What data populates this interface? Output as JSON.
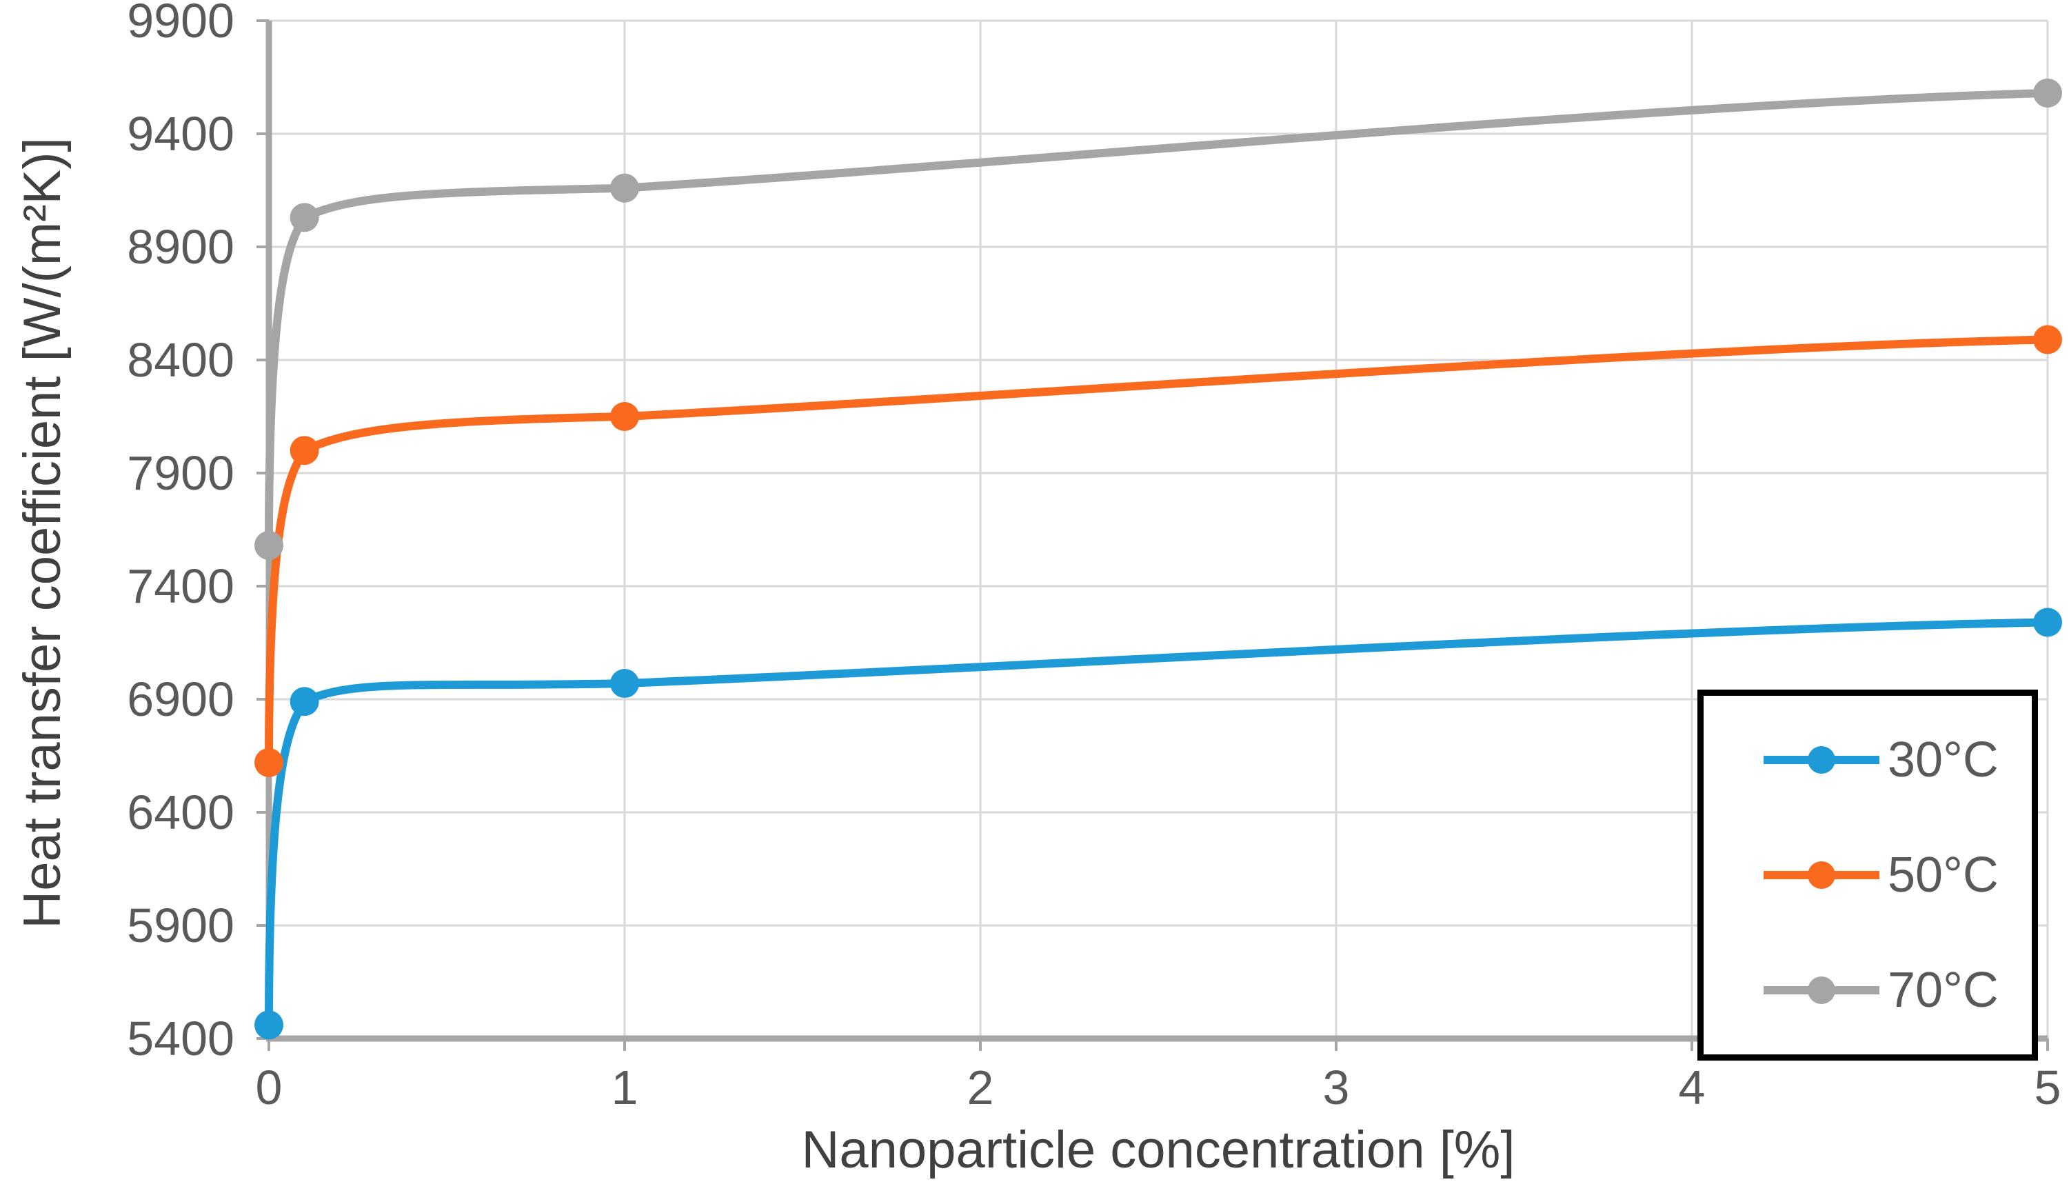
{
  "chart_data": {
    "type": "line",
    "title": "",
    "xlabel": "Nanoparticle concentration [%]",
    "ylabel": "Heat transfer coefficient [W/(m²K)]",
    "x": [
      0,
      0.1,
      1,
      5
    ],
    "series": [
      {
        "name": "30°C",
        "color": "#1E9BD7",
        "values": [
          5460,
          6890,
          6970,
          7240
        ]
      },
      {
        "name": "50°C",
        "color": "#F96A1F",
        "values": [
          6620,
          8000,
          8150,
          8490
        ]
      },
      {
        "name": "70°C",
        "color": "#A5A5A5",
        "values": [
          7580,
          9030,
          9160,
          9580
        ]
      }
    ],
    "x_ticks": [
      0,
      1,
      2,
      3,
      4,
      5
    ],
    "y_ticks": [
      5400,
      5900,
      6400,
      6900,
      7400,
      7900,
      8400,
      8900,
      9400,
      9900
    ],
    "xlim": [
      0,
      5
    ],
    "ylim": [
      5400,
      9900
    ],
    "grid": true,
    "grid_color": "#D9D9D9",
    "axis_color": "#A6A6A6",
    "tick_text_color": "#595959",
    "legend_position": "bottom-right",
    "legend_border_color": "#000000",
    "marker_style": "circle"
  }
}
